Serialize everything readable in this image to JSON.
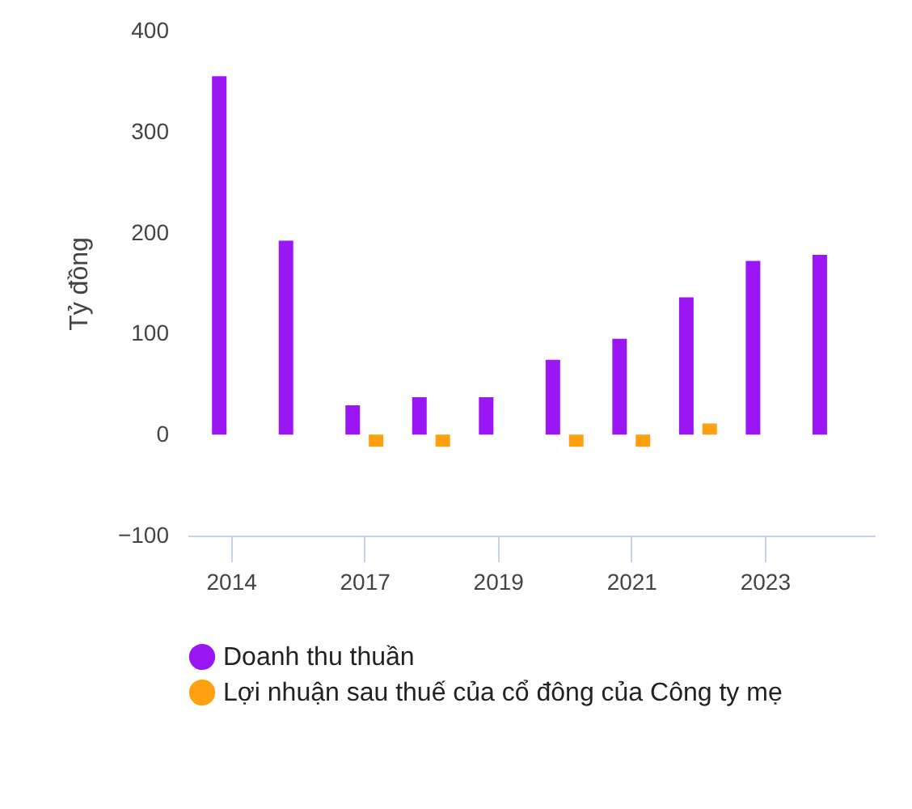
{
  "chart_data": {
    "type": "bar",
    "ylabel": "Tỷ đồng",
    "categories": [
      "2014",
      null,
      "2017",
      null,
      "2019",
      null,
      "2021",
      null,
      "2023",
      null
    ],
    "series": [
      {
        "name": "Doanh thu thuần",
        "color": "#9b16f5",
        "values": [
          355,
          192,
          29,
          37,
          37,
          74,
          95,
          136,
          172,
          178
        ]
      },
      {
        "name": "Lợi nhuận sau thuế của cổ đông của Công ty mẹ",
        "color": "#ffa010",
        "values": [
          null,
          null,
          -12,
          -12,
          null,
          -12,
          -12,
          11,
          null,
          null
        ]
      }
    ],
    "ylim": [
      -100,
      400
    ],
    "yticks": [
      -100,
      0,
      100,
      200,
      300,
      400
    ],
    "grid": false,
    "legend": "bottom"
  }
}
